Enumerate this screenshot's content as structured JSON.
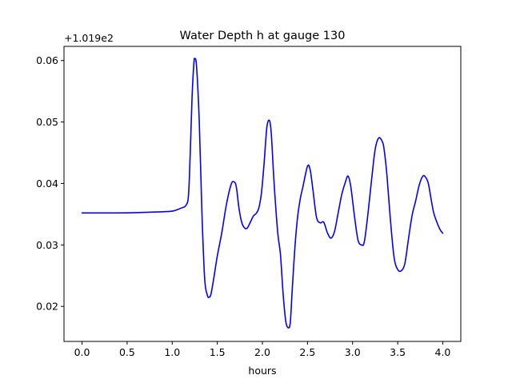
{
  "chart_data": {
    "type": "line",
    "title": "Water Depth h at gauge 130",
    "xlabel": "hours",
    "ylabel": "",
    "offset_label": "+1.019e2",
    "xlim": [
      -0.2,
      4.2
    ],
    "ylim": [
      0.0143,
      0.0623
    ],
    "xticks": [
      0.0,
      0.5,
      1.0,
      1.5,
      2.0,
      2.5,
      3.0,
      3.5,
      4.0
    ],
    "xtick_labels": [
      "0.0",
      "0.5",
      "1.0",
      "1.5",
      "2.0",
      "2.5",
      "3.0",
      "3.5",
      "4.0"
    ],
    "yticks": [
      0.02,
      0.03,
      0.04,
      0.05,
      0.06
    ],
    "ytick_labels": [
      "0.02",
      "0.03",
      "0.04",
      "0.05",
      "0.06"
    ],
    "grid": false,
    "legend": "none",
    "series": [
      {
        "color": "#0000ff",
        "x": [
          0.0,
          0.2,
          0.4,
          0.6,
          0.8,
          0.9,
          1.0,
          1.05,
          1.1,
          1.15,
          1.18,
          1.2,
          1.22,
          1.24,
          1.25,
          1.27,
          1.3,
          1.33,
          1.36,
          1.39,
          1.41,
          1.43,
          1.46,
          1.5,
          1.55,
          1.6,
          1.65,
          1.68,
          1.71,
          1.74,
          1.77,
          1.8,
          1.83,
          1.86,
          1.9,
          1.93,
          1.96,
          1.99,
          2.02,
          2.05,
          2.08,
          2.1,
          2.13,
          2.17,
          2.2,
          2.23,
          2.26,
          2.29,
          2.31,
          2.33,
          2.36,
          2.39,
          2.42,
          2.45,
          2.5,
          2.53,
          2.56,
          2.6,
          2.64,
          2.68,
          2.72,
          2.76,
          2.8,
          2.84,
          2.88,
          2.92,
          2.95,
          2.98,
          3.02,
          3.06,
          3.1,
          3.13,
          3.17,
          3.21,
          3.25,
          3.29,
          3.33,
          3.35,
          3.38,
          3.42,
          3.46,
          3.5,
          3.54,
          3.58,
          3.62,
          3.66,
          3.7,
          3.74,
          3.78,
          3.81,
          3.84,
          3.87,
          3.9,
          3.94,
          3.97,
          4.0
        ],
        "y": [
          0.0352,
          0.0352,
          0.0352,
          0.03525,
          0.03535,
          0.0354,
          0.0355,
          0.0357,
          0.036,
          0.0364,
          0.038,
          0.045,
          0.054,
          0.0595,
          0.0603,
          0.059,
          0.05,
          0.035,
          0.0245,
          0.0218,
          0.0215,
          0.022,
          0.0245,
          0.0282,
          0.032,
          0.0365,
          0.0397,
          0.0403,
          0.0395,
          0.036,
          0.0337,
          0.0328,
          0.0327,
          0.0335,
          0.0347,
          0.0351,
          0.036,
          0.0385,
          0.0435,
          0.0492,
          0.0502,
          0.0478,
          0.04,
          0.032,
          0.0285,
          0.022,
          0.0175,
          0.0165,
          0.0175,
          0.0225,
          0.0295,
          0.0345,
          0.0375,
          0.0395,
          0.0428,
          0.0422,
          0.039,
          0.0345,
          0.0336,
          0.0337,
          0.032,
          0.0311,
          0.0322,
          0.0352,
          0.0382,
          0.0402,
          0.0412,
          0.0395,
          0.0348,
          0.0308,
          0.03,
          0.0305,
          0.035,
          0.0405,
          0.0455,
          0.0474,
          0.0468,
          0.0455,
          0.0415,
          0.034,
          0.028,
          0.026,
          0.0258,
          0.027,
          0.031,
          0.0348,
          0.0372,
          0.0398,
          0.0412,
          0.041,
          0.04,
          0.0375,
          0.0352,
          0.0335,
          0.0325,
          0.0319
        ]
      }
    ]
  }
}
